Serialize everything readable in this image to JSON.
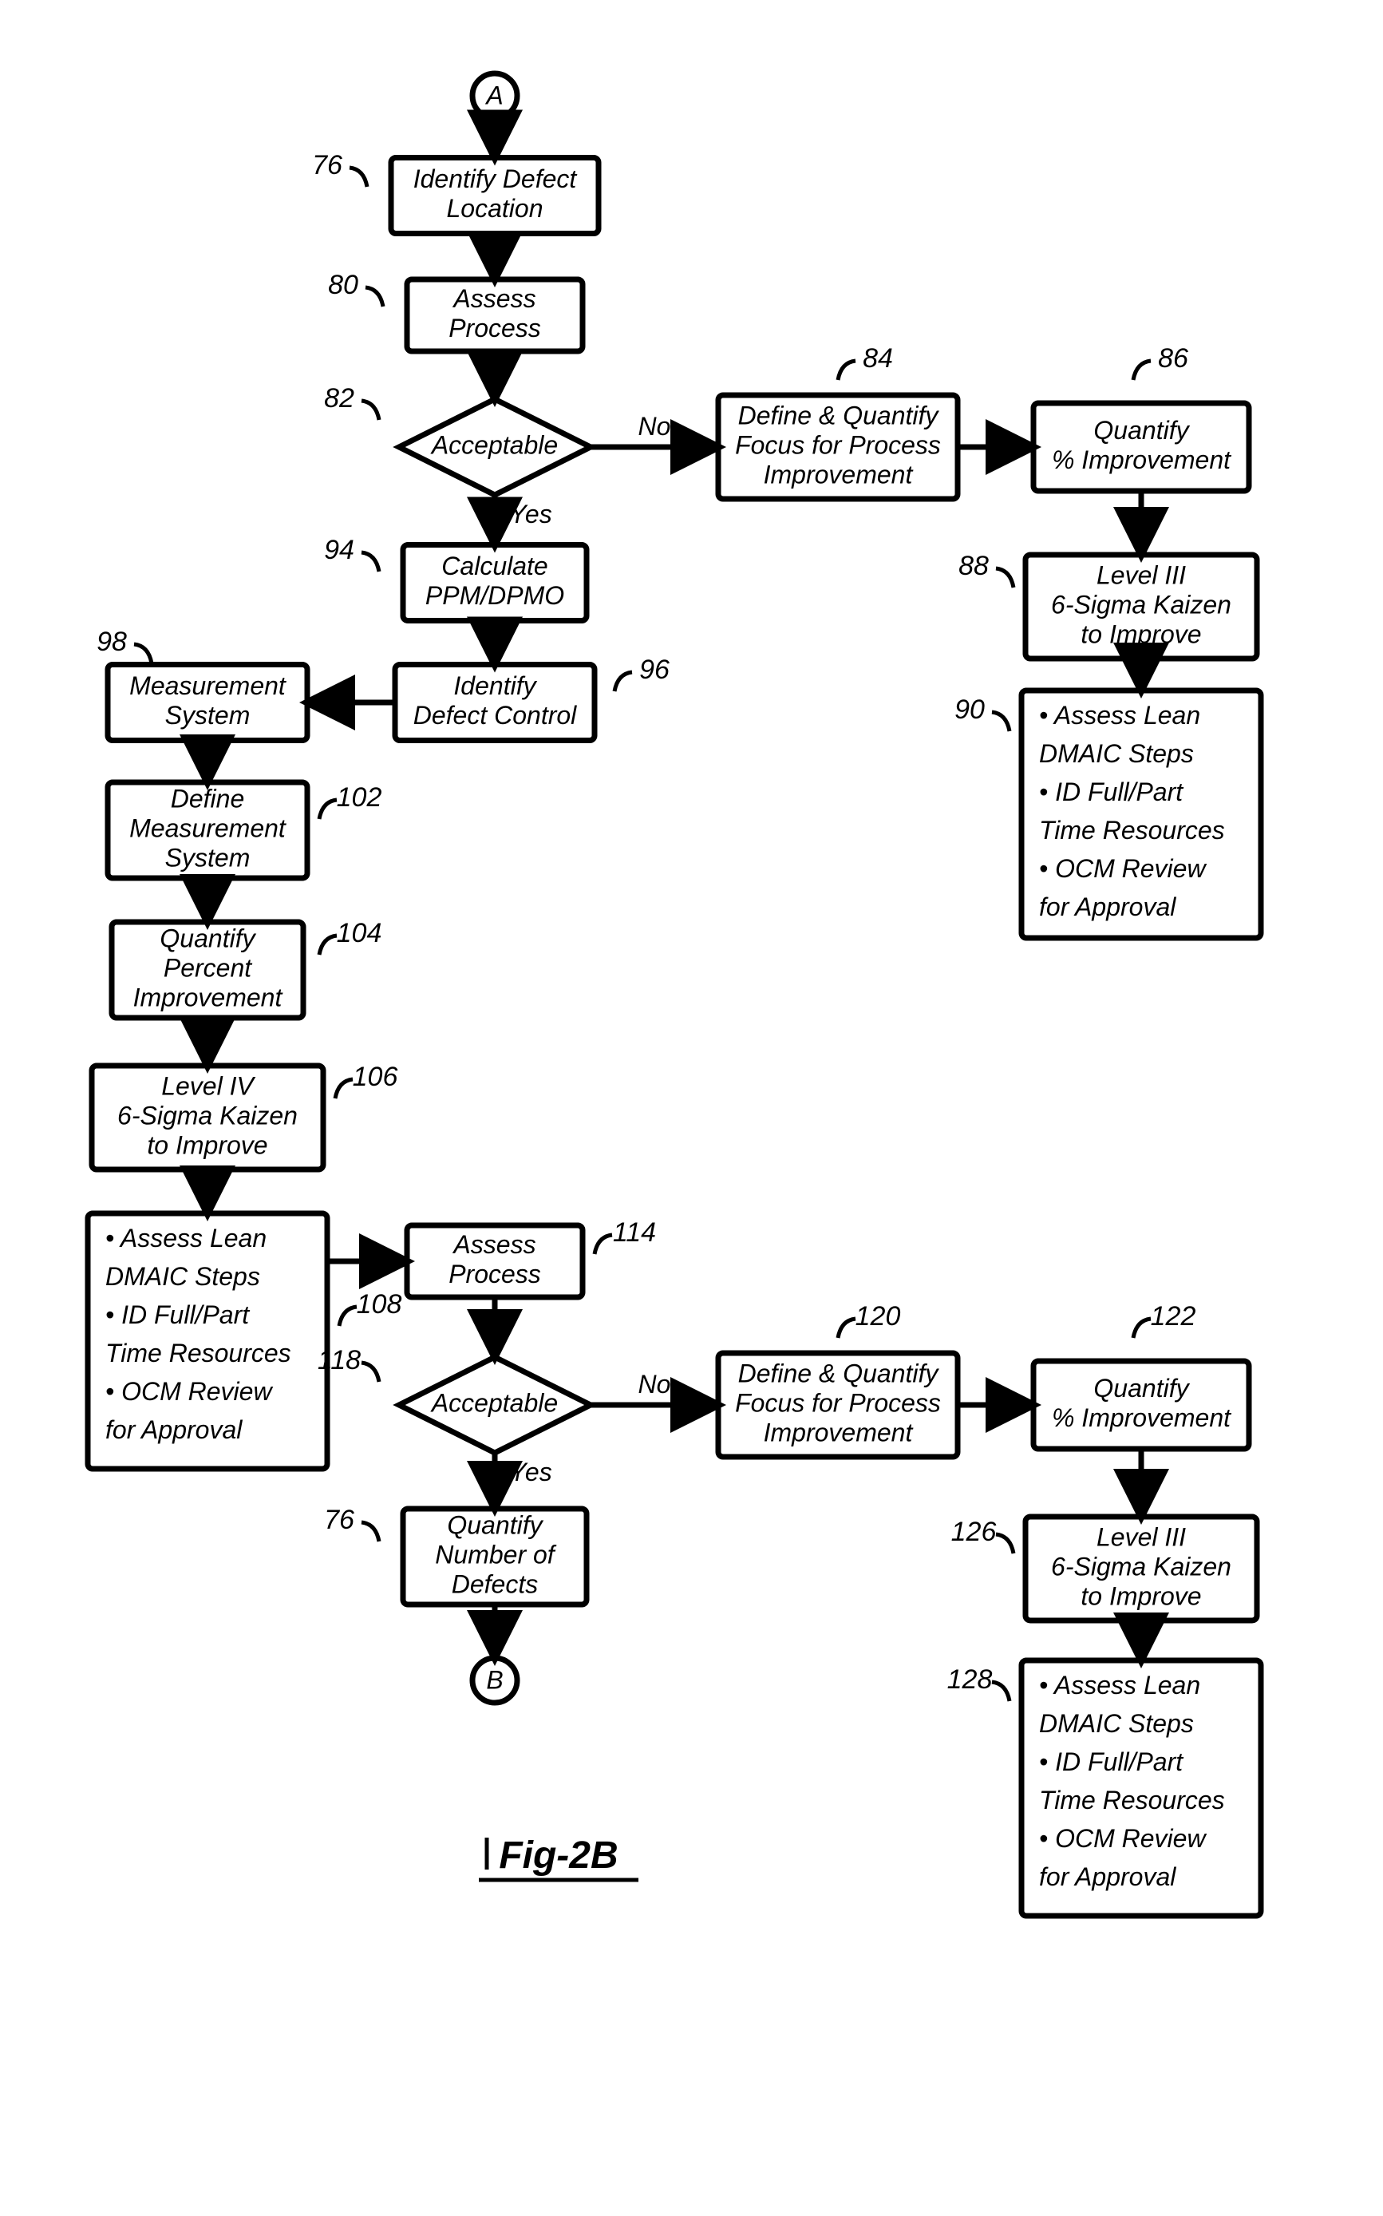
{
  "figure_label": "Fig-2B",
  "colors": {
    "stroke": "#000000",
    "fill": "#ffffff",
    "text": "#000000"
  },
  "stroke_width": 7,
  "font": {
    "box_size": 32,
    "ref_size": 34,
    "edge_size": 32,
    "fig_size": 48
  },
  "connectors": {
    "A": "A",
    "B": "B"
  },
  "edges": {
    "no": "No",
    "yes": "Yes"
  },
  "nodes": {
    "n76": {
      "ref": "76",
      "lines": [
        "Identify Defect",
        "Location"
      ]
    },
    "n80": {
      "ref": "80",
      "lines": [
        "Assess",
        "Process"
      ]
    },
    "n82": {
      "ref": "82",
      "lines": [
        "Acceptable"
      ]
    },
    "n84": {
      "ref": "84",
      "lines": [
        "Define & Quantify",
        "Focus for Process",
        "Improvement"
      ]
    },
    "n86": {
      "ref": "86",
      "lines": [
        "Quantify",
        "% Improvement"
      ]
    },
    "n88": {
      "ref": "88",
      "lines": [
        "Level III",
        "6-Sigma Kaizen",
        "to Improve"
      ]
    },
    "n90": {
      "ref": "90",
      "bullets": [
        "Assess Lean",
        "DMAIC Steps",
        "ID Full/Part",
        "Time Resources",
        "OCM Review",
        "for Approval"
      ]
    },
    "n94": {
      "ref": "94",
      "lines": [
        "Calculate",
        "PPM/DPMO"
      ]
    },
    "n96": {
      "ref": "96",
      "lines": [
        "Identify",
        "Defect Control"
      ]
    },
    "n98": {
      "ref": "98",
      "lines": [
        "Measurement",
        "System"
      ]
    },
    "n102": {
      "ref": "102",
      "lines": [
        "Define",
        "Measurement",
        "System"
      ]
    },
    "n104": {
      "ref": "104",
      "lines": [
        "Quantify",
        "Percent",
        "Improvement"
      ]
    },
    "n106": {
      "ref": "106",
      "lines": [
        "Level IV",
        "6-Sigma Kaizen",
        "to Improve"
      ]
    },
    "n108": {
      "ref": "108",
      "bullets": [
        "Assess Lean",
        "DMAIC Steps",
        "ID Full/Part",
        "Time Resources",
        "OCM Review",
        "for Approval"
      ]
    },
    "n114": {
      "ref": "114",
      "lines": [
        "Assess",
        "Process"
      ]
    },
    "n118": {
      "ref": "118",
      "lines": [
        "Acceptable"
      ]
    },
    "n120": {
      "ref": "120",
      "lines": [
        "Define & Quantify",
        "Focus for Process",
        "Improvement"
      ]
    },
    "n122": {
      "ref": "122",
      "lines": [
        "Quantify",
        "% Improvement"
      ]
    },
    "n126": {
      "ref": "126",
      "lines": [
        "Level III",
        "6-Sigma Kaizen",
        "to Improve"
      ]
    },
    "n128": {
      "ref": "128",
      "bullets": [
        "Assess Lean",
        "DMAIC Steps",
        "ID Full/Part",
        "Time Resources",
        "OCM Review",
        "for Approval"
      ]
    },
    "n76b": {
      "ref": "76",
      "lines": [
        "Quantify",
        "Number of",
        "Defects"
      ]
    }
  }
}
